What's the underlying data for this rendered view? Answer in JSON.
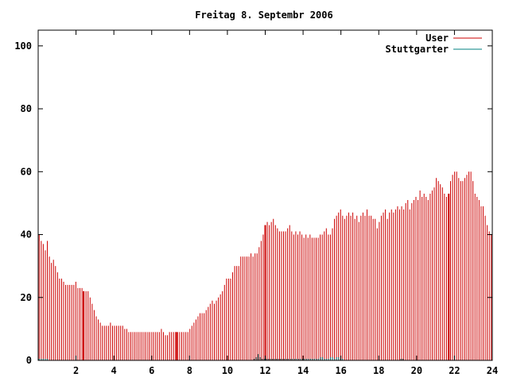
{
  "chart_data": {
    "type": "bar",
    "title": "Freitag 8. Septembr 2006",
    "xlabel": "",
    "ylabel": "",
    "xlim": [
      0,
      24
    ],
    "ylim": [
      0,
      105
    ],
    "xticks": [
      2,
      4,
      6,
      8,
      10,
      12,
      14,
      16,
      18,
      20,
      22,
      24
    ],
    "yticks": [
      0,
      20,
      40,
      60,
      80,
      100
    ],
    "grid": false,
    "legend_position": "top-right",
    "series": [
      {
        "name": "User",
        "color": "#cc0000",
        "values": [
          40,
          38,
          37,
          35,
          38,
          33,
          31,
          32,
          30,
          28,
          26,
          26,
          25,
          24,
          24,
          24,
          24,
          24,
          25,
          23,
          23,
          23,
          22,
          22,
          22,
          20,
          18,
          16,
          14,
          13,
          12,
          11,
          11,
          11,
          11,
          12,
          11,
          11,
          11,
          11,
          11,
          11,
          10,
          10,
          9,
          9,
          9,
          9,
          9,
          9,
          9,
          9,
          9,
          9,
          9,
          9,
          9,
          9,
          9,
          9,
          10,
          9,
          8,
          8,
          9,
          9,
          9,
          9,
          9,
          9,
          9,
          9,
          9,
          9,
          10,
          11,
          12,
          13,
          14,
          15,
          15,
          15,
          16,
          17,
          18,
          19,
          18,
          19,
          20,
          21,
          22,
          24,
          26,
          26,
          26,
          28,
          30,
          30,
          30,
          33,
          33,
          33,
          33,
          33,
          34,
          33,
          34,
          34,
          36,
          38,
          40,
          43,
          44,
          43,
          44,
          45,
          43,
          42,
          41,
          41,
          41,
          41,
          42,
          43,
          41,
          40,
          41,
          40,
          41,
          40,
          39,
          40,
          39,
          40,
          39,
          39,
          39,
          39,
          40,
          40,
          41,
          42,
          40,
          40,
          42,
          45,
          46,
          47,
          48,
          46,
          45,
          46,
          47,
          46,
          47,
          45,
          46,
          44,
          46,
          47,
          46,
          48,
          46,
          46,
          45,
          45,
          42,
          44,
          46,
          47,
          48,
          45,
          47,
          48,
          47,
          48,
          49,
          48,
          49,
          48,
          50,
          51,
          48,
          50,
          51,
          52,
          51,
          54,
          52,
          53,
          52,
          51,
          53,
          54,
          55,
          58,
          57,
          56,
          55,
          53,
          52,
          53,
          57,
          59,
          60,
          60,
          58,
          57,
          57,
          58,
          59,
          60,
          60,
          57,
          53,
          52,
          51,
          49,
          49,
          46,
          43,
          41,
          40
        ]
      },
      {
        "name": "Stuttgarter",
        "color": "#008080",
        "values": [
          0.5,
          0.5,
          0.5,
          0.5,
          0.5,
          0,
          0,
          0,
          0,
          0,
          0,
          0,
          0,
          0,
          0,
          0,
          0,
          0,
          0,
          0,
          0,
          0,
          0,
          0,
          0,
          0,
          0,
          0,
          0,
          0,
          0,
          0,
          0,
          0,
          0,
          0,
          0,
          0,
          0,
          0,
          0,
          0,
          0,
          0,
          0,
          0,
          0,
          0,
          0,
          0,
          0,
          0,
          0,
          0,
          0,
          0,
          0,
          0,
          0,
          0,
          0,
          0,
          0,
          0,
          0,
          0,
          0,
          0,
          0,
          0,
          0,
          0,
          0,
          0,
          0,
          0,
          0,
          0,
          0,
          0,
          0,
          0,
          0,
          0,
          0,
          0,
          0,
          0,
          0,
          0,
          0,
          0,
          0,
          0,
          0,
          0,
          0,
          0,
          0,
          0,
          0,
          0,
          0,
          0,
          0,
          0,
          0,
          0.5,
          1,
          2,
          1,
          0.5,
          0.5,
          0.5,
          0.5,
          0.5,
          0.5,
          0.5,
          0.5,
          0.5,
          0.5,
          0.5,
          0.5,
          0.5,
          0.5,
          0.5,
          0.5,
          0.5,
          0.5,
          0.5,
          0.5,
          0.5,
          0.5,
          0.5,
          0.5,
          0.5,
          0.5,
          0.5,
          0.5,
          0.5,
          1,
          1,
          0.5,
          0.5,
          0.5,
          1,
          1,
          0.5,
          1,
          1,
          0.5,
          0.5,
          0,
          0,
          0,
          0,
          0,
          0,
          0,
          0,
          0,
          0,
          0,
          0,
          0,
          0,
          0,
          0,
          0,
          0,
          0,
          0,
          0,
          0,
          0,
          0,
          0,
          0,
          0,
          0,
          0.5,
          0.5,
          0,
          0,
          0,
          0,
          0,
          0,
          0,
          0,
          0,
          0,
          0,
          0,
          0,
          0,
          0,
          0,
          0,
          0,
          0,
          0,
          0,
          0,
          0,
          0,
          0,
          0,
          0,
          0,
          0,
          0,
          0,
          0,
          0,
          0,
          0,
          0,
          0,
          0,
          0,
          0,
          0,
          0,
          0,
          0
        ]
      }
    ],
    "highlight_hours": [
      2.4,
      7.3,
      12,
      21.7
    ]
  }
}
